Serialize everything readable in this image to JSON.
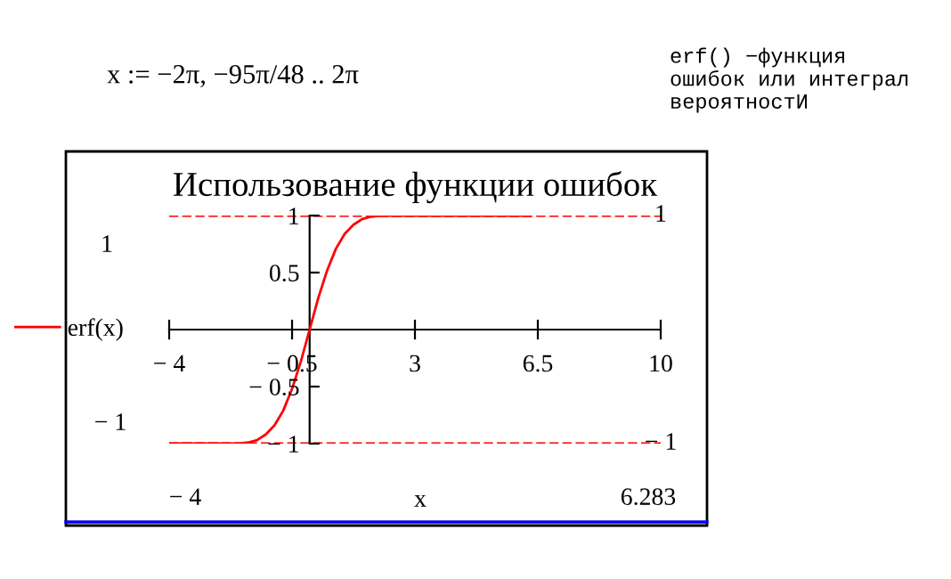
{
  "chart_data": {
    "type": "line",
    "title": "Использование функции ошибок",
    "xlabel": "x",
    "x": [
      -4,
      -3,
      -2.5,
      -2,
      -1.75,
      -1.5,
      -1.25,
      -1,
      -0.75,
      -0.5,
      -0.25,
      0,
      0.25,
      0.5,
      0.75,
      1,
      1.25,
      1.5,
      1.75,
      2,
      2.5,
      3,
      4,
      5,
      6.283
    ],
    "series": [
      {
        "name": "erf(x)",
        "color": "#ff0000",
        "values": [
          -1,
          -1,
          -1,
          -1,
          -0.99,
          -0.97,
          -0.92,
          -0.84,
          -0.71,
          -0.52,
          -0.28,
          0,
          0.28,
          0.52,
          0.71,
          0.84,
          0.92,
          0.97,
          0.99,
          1,
          1,
          1,
          1,
          1,
          1
        ]
      }
    ],
    "xlim": [
      -4,
      10
    ],
    "ylim": [
      -1,
      1
    ],
    "xticks": [
      {
        "value": -4,
        "label": "− 4"
      },
      {
        "value": -0.5,
        "label": "− 0.5"
      },
      3,
      6.5,
      10
    ],
    "yticks": [
      {
        "value": -1,
        "label": "− 1"
      },
      {
        "value": -0.5,
        "label": "− 0.5"
      },
      0.5,
      1
    ],
    "ref_lines": [
      {
        "axis": "y",
        "value": 1,
        "label": "1",
        "color": "#ff0000",
        "line_style": "dashed"
      },
      {
        "axis": "y",
        "value": -1,
        "label": "− 1",
        "color": "#ff0000",
        "line_style": "dashed"
      }
    ],
    "annotations": [
      "x := −2π, −95π/48 .. 2π",
      "erf() −функция\nошибок или интеграл\nвероятностИ",
      "1",
      "− 1",
      "− 4",
      "6.283"
    ],
    "legend": "left",
    "grid": false,
    "line_style": "solid",
    "marker": "none"
  }
}
